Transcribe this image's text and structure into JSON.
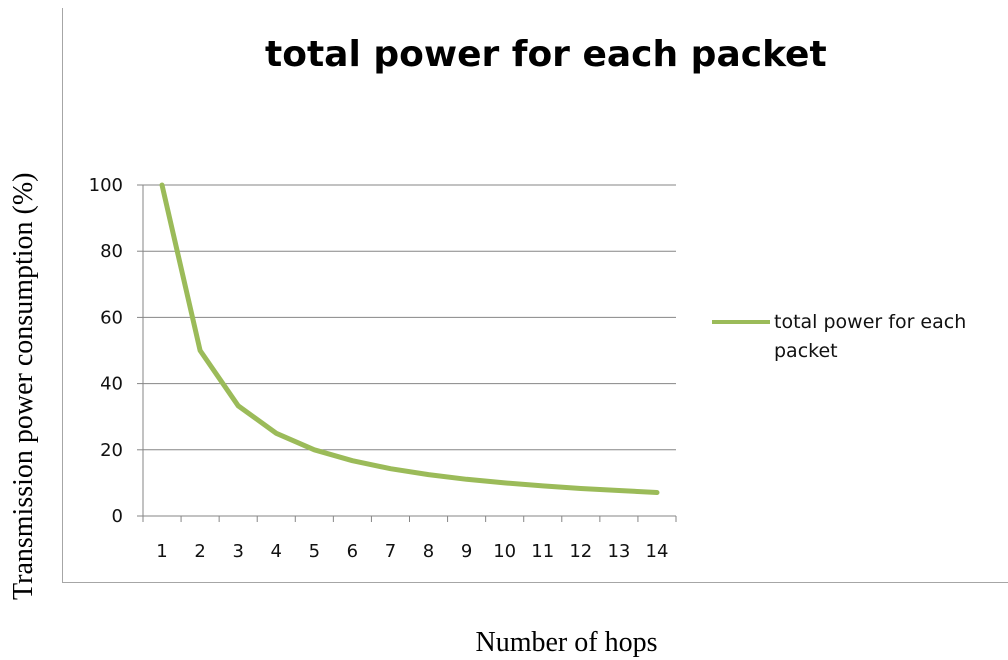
{
  "chart_data": {
    "type": "line",
    "title": "total power for each packet",
    "xlabel": "Number of hops",
    "ylabel": "Transmission power consumption (%)",
    "categories": [
      "1",
      "2",
      "3",
      "4",
      "5",
      "6",
      "7",
      "8",
      "9",
      "10",
      "11",
      "12",
      "13",
      "14"
    ],
    "series": [
      {
        "name": "total power for each packet",
        "color": "#9bbb59",
        "values": [
          100,
          50,
          33.3,
          25,
          20,
          16.7,
          14.3,
          12.5,
          11.1,
          10,
          9.1,
          8.3,
          7.7,
          7.1
        ]
      }
    ],
    "ylim": [
      0,
      100
    ],
    "yticks": [
      "0",
      "20",
      "40",
      "60",
      "80",
      "100"
    ],
    "grid": true,
    "legend_position": "right"
  }
}
